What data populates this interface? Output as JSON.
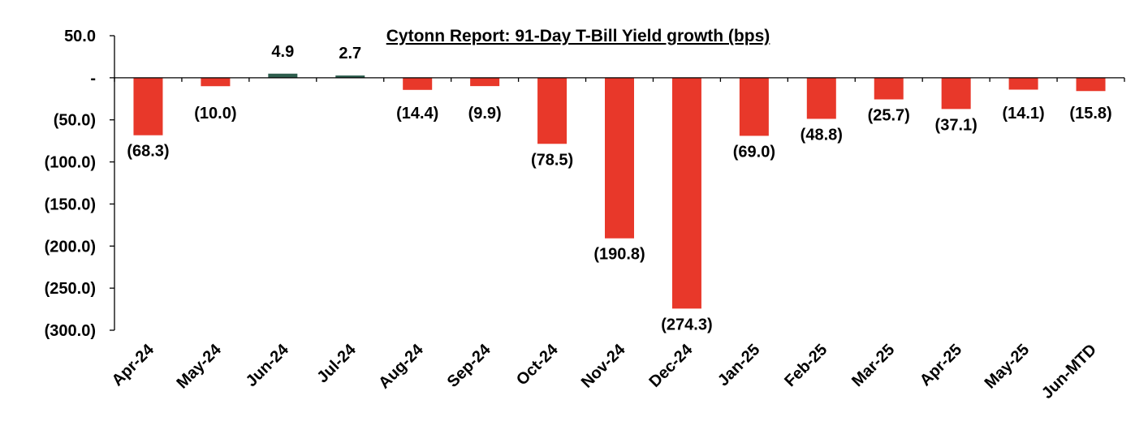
{
  "chart_data": {
    "type": "bar",
    "title": "Cytonn Report:  91-Day T-Bill Yield growth (bps)",
    "xlabel": "",
    "ylabel": "",
    "ylim": [
      -300,
      50
    ],
    "yticks": [
      {
        "value": 50,
        "label": "50.0"
      },
      {
        "value": 0,
        "label": "-"
      },
      {
        "value": -50,
        "label": "(50.0)"
      },
      {
        "value": -100,
        "label": "(100.0)"
      },
      {
        "value": -150,
        "label": "(150.0)"
      },
      {
        "value": -200,
        "label": "(200.0)"
      },
      {
        "value": -250,
        "label": "(250.0)"
      },
      {
        "value": -300,
        "label": "(300.0)"
      }
    ],
    "categories": [
      "Apr-24",
      "May-24",
      "Jun-24",
      "Jul-24",
      "Aug-24",
      "Sep-24",
      "Oct-24",
      "Nov-24",
      "Dec-24",
      "Jan-25",
      "Feb-25",
      "Mar-25",
      "Apr-25",
      "May-25",
      "Jun-MTD"
    ],
    "values": [
      -68.3,
      -10.0,
      4.9,
      2.7,
      -14.4,
      -9.9,
      -78.5,
      -190.8,
      -274.3,
      -69.0,
      -48.8,
      -25.7,
      -37.1,
      -14.1,
      -15.8
    ],
    "data_labels": [
      "(68.3)",
      "(10.0)",
      "4.9",
      "2.7",
      "(14.4)",
      "(9.9)",
      "(78.5)",
      "(190.8)",
      "(274.3)",
      "(69.0)",
      "(48.8)",
      "(25.7)",
      "(37.1)",
      "(14.1)",
      "(15.8)"
    ],
    "colors": {
      "negative": "#E8382A",
      "positive": "#2E5E4E"
    },
    "grid": false,
    "legend": "none"
  }
}
